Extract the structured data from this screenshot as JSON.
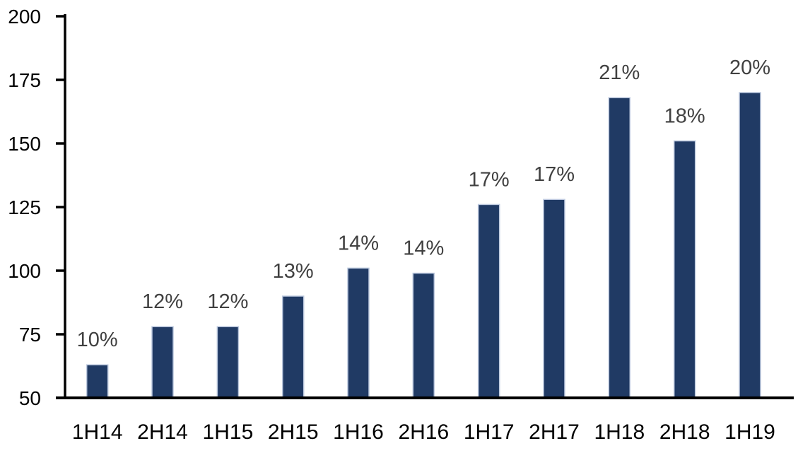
{
  "chart_data": {
    "type": "bar",
    "categories": [
      "1H14",
      "2H14",
      "1H15",
      "2H15",
      "1H16",
      "2H16",
      "1H17",
      "2H17",
      "1H18",
      "2H18",
      "1H19"
    ],
    "values": [
      63,
      78,
      78,
      90,
      101,
      99,
      126,
      128,
      168,
      151,
      170
    ],
    "bar_labels": [
      "10%",
      "12%",
      "12%",
      "13%",
      "14%",
      "14%",
      "17%",
      "17%",
      "21%",
      "18%",
      "20%"
    ],
    "title": "",
    "xlabel": "",
    "ylabel": "",
    "ylim": [
      50,
      200
    ],
    "yticks": [
      50,
      75,
      100,
      125,
      150,
      175,
      200
    ],
    "grid": false,
    "legend": false,
    "colors": {
      "bar_fill": "#203A64",
      "bar_stroke": "#BCC8DE",
      "axis": "#000000",
      "tick_label": "#000000",
      "data_label": "#404040",
      "background": "#FFFFFF"
    }
  }
}
